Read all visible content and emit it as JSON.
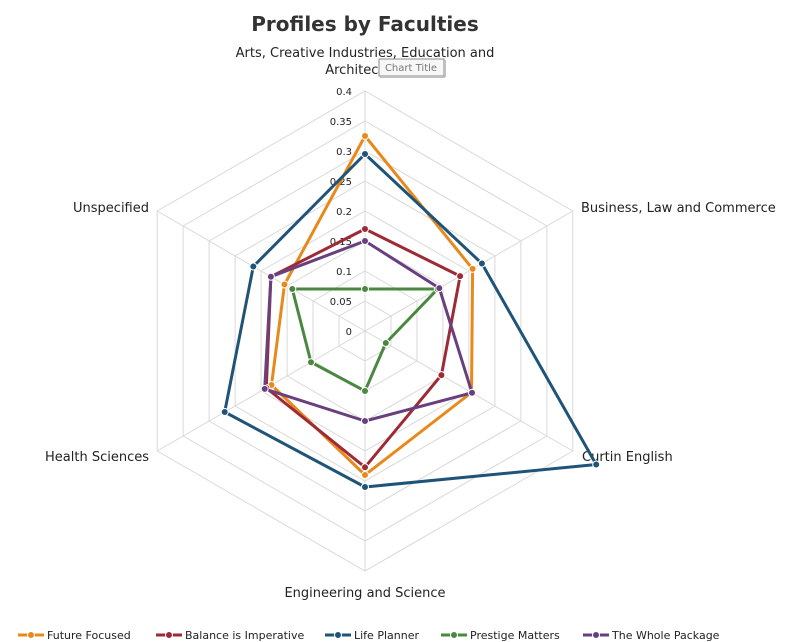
{
  "chart_data": {
    "type": "radar",
    "title": "Profiles by Faculties",
    "tooltip": "Chart Title",
    "categories": [
      "Arts, Creative Industries, Education and Architecture",
      "Business, Law and Commerce",
      "Curtin English",
      "Engineering and Science",
      "Health Sciences",
      "Unspecified"
    ],
    "category_lines": [
      [
        "Arts, Creative Industries, Education and",
        "Architecture"
      ],
      [
        "Business, Law and Commerce"
      ],
      [
        "Curtin English"
      ],
      [
        "Engineering and Science"
      ],
      [
        "Health Sciences"
      ],
      [
        "Unspecified"
      ]
    ],
    "rlim": [
      0,
      0.4
    ],
    "ticks": [
      0,
      0.05,
      0.1,
      0.15,
      0.2,
      0.25,
      0.3,
      0.35,
      0.4
    ],
    "tick_labels": [
      "0",
      "0.05",
      "0.1",
      "0.15",
      "0.2",
      "0.25",
      "0.3",
      "0.35",
      "0.4"
    ],
    "series": [
      {
        "name": "Future Focused",
        "color": "#E8891C",
        "values": [
          0.325,
          0.207,
          0.205,
          0.24,
          0.18,
          0.155
        ]
      },
      {
        "name": "Balance is Imperative",
        "color": "#9E2A36",
        "values": [
          0.17,
          0.183,
          0.147,
          0.227,
          0.19,
          0.181
        ]
      },
      {
        "name": "Life Planner",
        "color": "#1F5478",
        "values": [
          0.295,
          0.225,
          0.445,
          0.26,
          0.27,
          0.215
        ]
      },
      {
        "name": "Prestige Matters",
        "color": "#4A8840",
        "values": [
          0.07,
          0.14,
          0.04,
          0.1,
          0.104,
          0.14
        ]
      },
      {
        "name": "The Whole Package",
        "color": "#6A3F7E",
        "values": [
          0.15,
          0.143,
          0.206,
          0.15,
          0.193,
          0.181
        ]
      }
    ]
  }
}
